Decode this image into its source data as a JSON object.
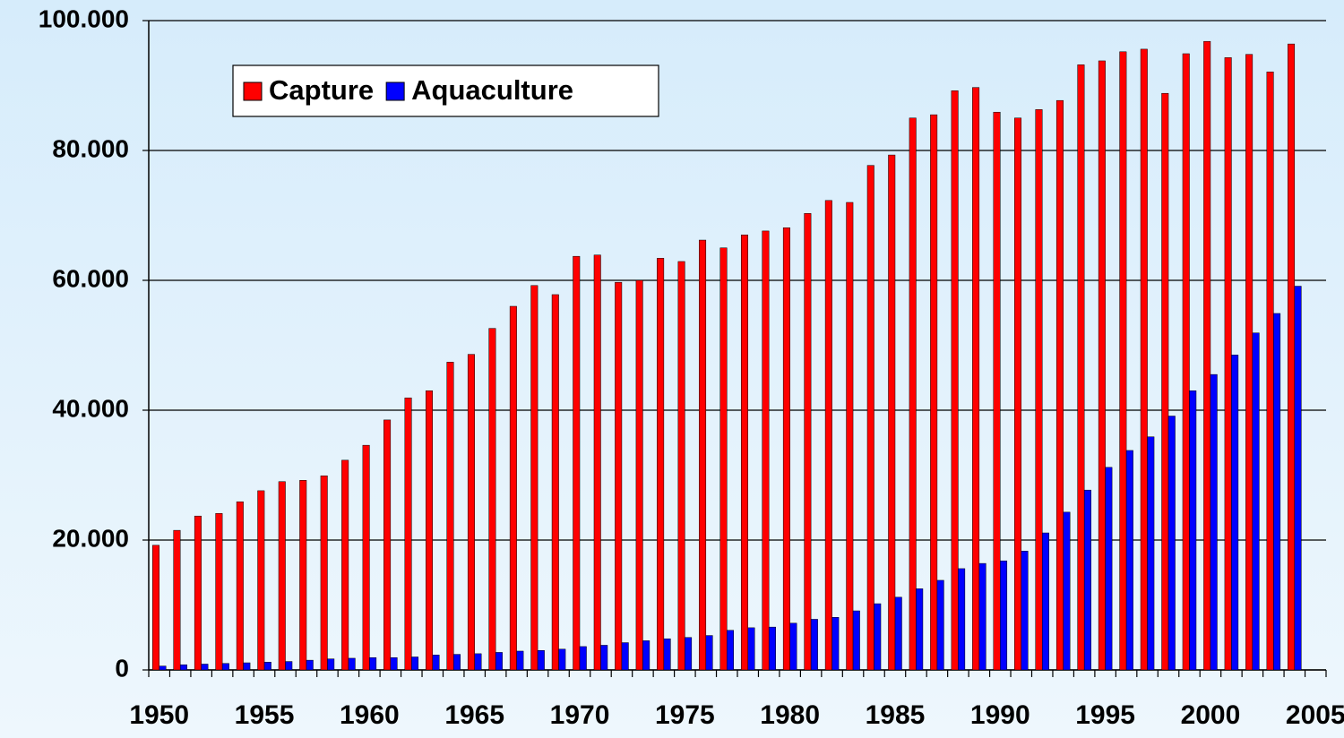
{
  "chart_data": {
    "type": "bar",
    "categories": [
      "1950",
      null,
      null,
      null,
      null,
      "1955",
      null,
      null,
      null,
      null,
      "1960",
      null,
      null,
      null,
      null,
      "1965",
      null,
      null,
      null,
      null,
      "1970",
      null,
      null,
      null,
      null,
      "1975",
      null,
      null,
      null,
      null,
      "1980",
      null,
      null,
      null,
      null,
      "1985",
      null,
      null,
      null,
      null,
      "1990",
      null,
      null,
      null,
      null,
      "1995",
      null,
      null,
      null,
      null,
      "2000",
      null,
      null,
      null,
      null,
      "2005"
    ],
    "series": [
      {
        "name": "Capture",
        "color": "#ff0000",
        "values": [
          19200,
          21500,
          23700,
          24100,
          25900,
          27600,
          29000,
          29200,
          29900,
          32300,
          34600,
          38500,
          41900,
          43000,
          47400,
          48600,
          52600,
          56000,
          59200,
          57800,
          63700,
          63900,
          59700,
          60000,
          63400,
          62900,
          66200,
          65000,
          67000,
          67600,
          68100,
          70300,
          72300,
          72000,
          77700,
          79300,
          85000,
          85500,
          89200,
          89700,
          85900,
          85000,
          86300,
          87700,
          93200,
          93800,
          95200,
          95600,
          88800,
          94900,
          96800,
          94300,
          94800,
          92100,
          96400,
          null
        ]
      },
      {
        "name": "Aquaculture",
        "color": "#0000ff",
        "values": [
          600,
          800,
          900,
          1000,
          1100,
          1200,
          1300,
          1500,
          1700,
          1800,
          1900,
          1900,
          2000,
          2300,
          2400,
          2500,
          2700,
          2900,
          3000,
          3200,
          3600,
          3800,
          4200,
          4500,
          4800,
          5000,
          5300,
          6100,
          6500,
          6600,
          7200,
          7800,
          8100,
          9100,
          10200,
          11200,
          12500,
          13800,
          15600,
          16400,
          16800,
          18300,
          21100,
          24300,
          27700,
          31200,
          33800,
          35900,
          39100,
          43000,
          45500,
          48500,
          51900,
          54900,
          59100,
          null
        ]
      }
    ],
    "ylim": [
      0,
      100000
    ],
    "yticks": [
      0,
      {
        "value": 20000,
        "label": "20.000"
      },
      {
        "value": 40000,
        "label": "40.000"
      },
      {
        "value": 60000,
        "label": "60.000"
      },
      {
        "value": 80000,
        "label": "80.000"
      },
      {
        "value": 100000,
        "label": "100.000"
      }
    ],
    "grid": true,
    "legend": "top-left"
  }
}
